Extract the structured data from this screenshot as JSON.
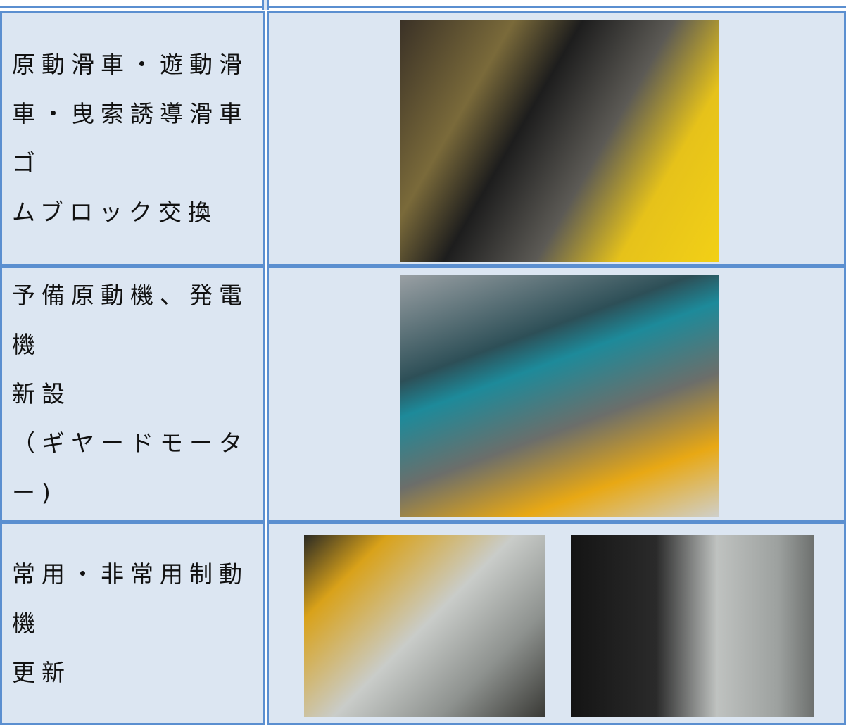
{
  "table": {
    "rows": [
      {
        "label_lines": [
          "原動滑車・遊動滑",
          "車・曳索誘導滑車ゴ",
          "ムブロック交換"
        ]
      },
      {
        "label_lines": [
          "予備原動機、発電機",
          "新設",
          "（ギヤードモーター)"
        ]
      },
      {
        "label_lines": [
          "常用・非常用制動機",
          "更新"
        ]
      }
    ]
  }
}
